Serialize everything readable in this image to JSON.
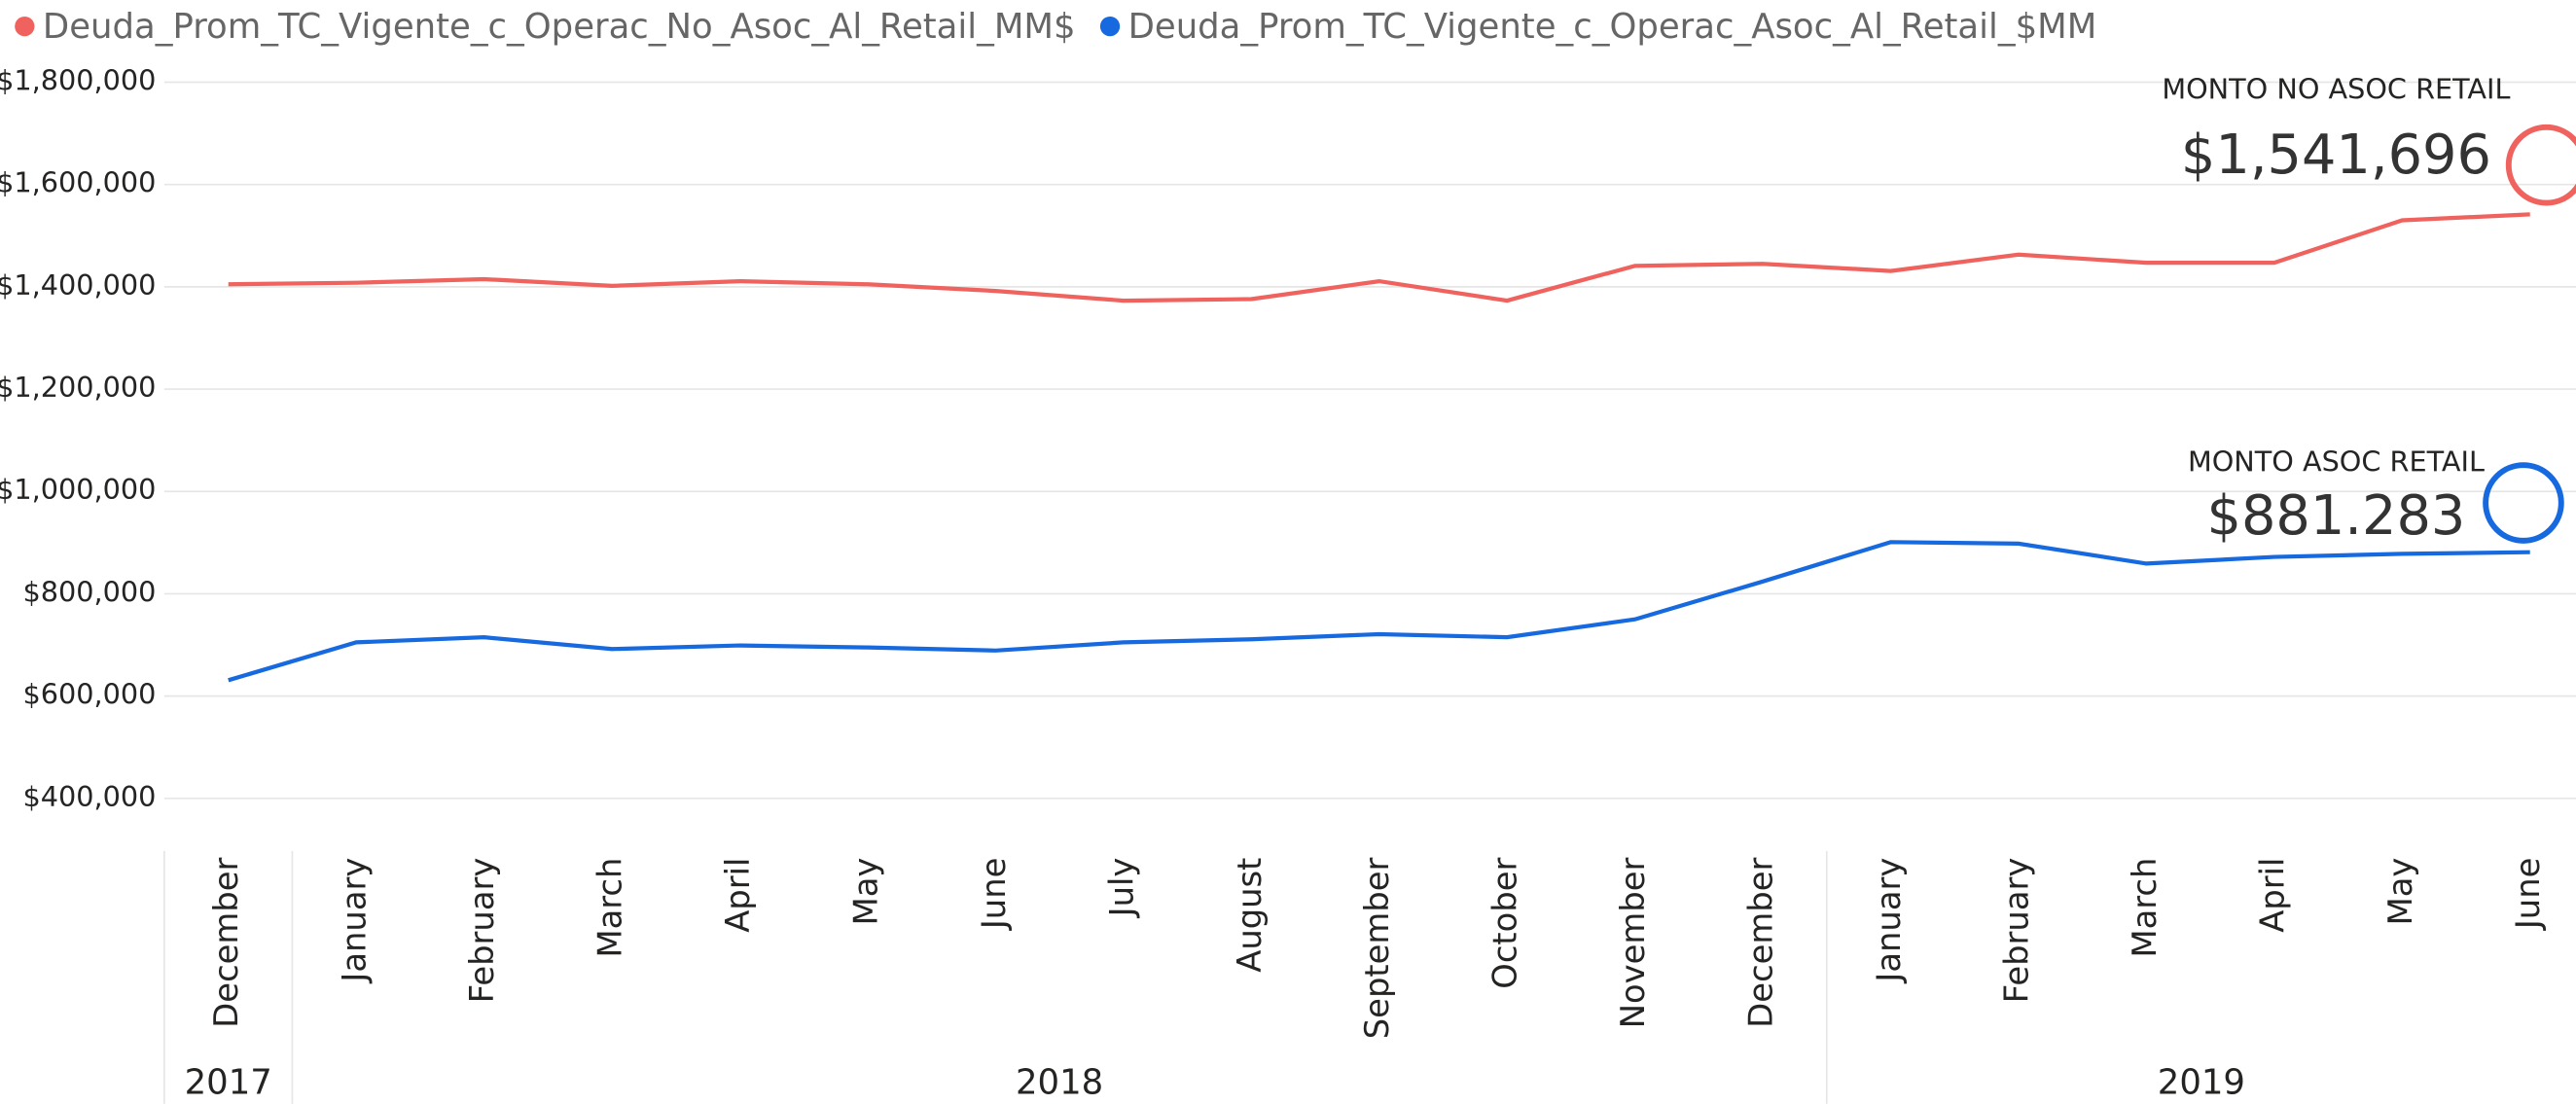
{
  "chart_data": {
    "type": "line",
    "categories": [
      "December",
      "January",
      "February",
      "March",
      "April",
      "May",
      "June",
      "July",
      "August",
      "September",
      "October",
      "November",
      "December",
      "January",
      "February",
      "March",
      "April",
      "May",
      "June"
    ],
    "x_groups": [
      {
        "label": "2017",
        "count": 1
      },
      {
        "label": "2018",
        "count": 12
      },
      {
        "label": "2019",
        "count": 6
      }
    ],
    "series": [
      {
        "name": "Deuda_Prom_TC_Vigente_c_Operac_No_Asoc_Al_Retail_MM$",
        "color": "#f0625d",
        "values": [
          1405000,
          1408000,
          1415000,
          1402000,
          1411000,
          1405000,
          1392000,
          1373000,
          1376000,
          1411000,
          1373000,
          1441000,
          1445000,
          1431000,
          1463000,
          1447000,
          1447000,
          1530000,
          1541696
        ]
      },
      {
        "name": "Deuda_Prom_TC_Vigente_c_Operac_Asoc_Al_Retail_$MM",
        "color": "#1769e0",
        "values": [
          631000,
          705000,
          715000,
          692000,
          699000,
          695000,
          689000,
          705000,
          711000,
          721000,
          715000,
          750000,
          824000,
          901000,
          898000,
          859000,
          872000,
          878000,
          881283
        ]
      }
    ],
    "annotations": [
      {
        "title": "MONTO NO ASOC RETAIL",
        "value_label": "$1,541,696"
      },
      {
        "title": "MONTO ASOC RETAIL",
        "value_label": "$881.283"
      }
    ],
    "ylim": [
      400000,
      1800000
    ],
    "yticks": [
      {
        "value": 400000,
        "label": "$400,000"
      },
      {
        "value": 600000,
        "label": "$600,000"
      },
      {
        "value": 800000,
        "label": "$800,000"
      },
      {
        "value": 1000000,
        "label": "$1,000,000"
      },
      {
        "value": 1200000,
        "label": "$1,200,000"
      },
      {
        "value": 1400000,
        "label": "$1,400,000"
      },
      {
        "value": 1600000,
        "label": "$1,600,000"
      },
      {
        "value": 1800000,
        "label": "$1,800,000"
      }
    ],
    "grid": true
  }
}
